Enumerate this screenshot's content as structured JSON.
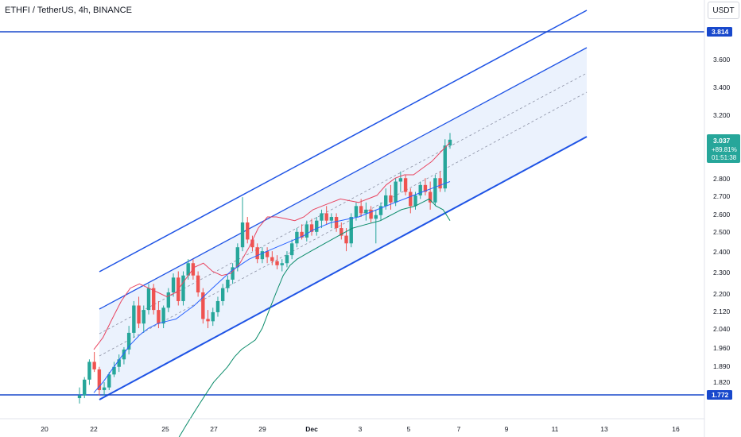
{
  "header": {
    "symbol_title": "ETHFI / TetherUS, 4h, BINANCE",
    "currency": "USDT"
  },
  "colors": {
    "up": "#26a69a",
    "down": "#ef5350",
    "channel": "#1e53e5",
    "channel_fill": "#dbe8fb",
    "horizontal_line": "#1848cc",
    "bb_upper": "#e94560",
    "bb_basis": "#2962ff",
    "bb_lower": "#0b8c6b",
    "price_badge": "#26a69a"
  },
  "chart_data": {
    "type": "candlestick",
    "title": "ETHFI / TetherUS, 4h, BINANCE",
    "quote_currency": "USDT",
    "y_axis": {
      "ticks": [
        "3.600",
        "3.400",
        "3.200",
        "2.800",
        "2.700",
        "2.600",
        "2.500",
        "2.400",
        "2.300",
        "2.200",
        "2.120",
        "2.040",
        "1.960",
        "1.890",
        "1.820"
      ],
      "scale": "log",
      "ylim": [
        1.7,
        4.0
      ]
    },
    "x_axis": {
      "ticks": [
        "20",
        "22",
        "25",
        "27",
        "29",
        "Dec",
        "3",
        "5",
        "7",
        "9",
        "11",
        "13",
        "16"
      ]
    },
    "horizontal_levels": [
      {
        "label": "3.814",
        "value": 3.814
      },
      {
        "label": "1.772",
        "value": 1.772
      }
    ],
    "last_price": {
      "price": "3.037",
      "change": "+89.81%",
      "countdown": "01:51:38"
    },
    "candles_ohlc": [
      [
        1.76,
        1.8,
        1.74,
        1.77
      ],
      [
        1.77,
        1.84,
        1.76,
        1.83
      ],
      [
        1.83,
        1.91,
        1.81,
        1.9
      ],
      [
        1.9,
        1.94,
        1.86,
        1.87
      ],
      [
        1.87,
        1.88,
        1.77,
        1.79
      ],
      [
        1.79,
        1.82,
        1.77,
        1.8
      ],
      [
        1.8,
        1.86,
        1.79,
        1.85
      ],
      [
        1.85,
        1.9,
        1.84,
        1.88
      ],
      [
        1.88,
        1.93,
        1.86,
        1.91
      ],
      [
        1.91,
        1.96,
        1.89,
        1.95
      ],
      [
        1.95,
        2.05,
        1.93,
        2.02
      ],
      [
        2.02,
        2.16,
        2.0,
        2.14
      ],
      [
        2.14,
        2.18,
        2.04,
        2.06
      ],
      [
        2.06,
        2.14,
        2.02,
        2.12
      ],
      [
        2.12,
        2.24,
        2.1,
        2.22
      ],
      [
        2.22,
        2.24,
        2.1,
        2.12
      ],
      [
        2.12,
        2.16,
        2.04,
        2.06
      ],
      [
        2.06,
        2.14,
        2.04,
        2.13
      ],
      [
        2.13,
        2.22,
        2.11,
        2.2
      ],
      [
        2.2,
        2.29,
        2.18,
        2.27
      ],
      [
        2.27,
        2.3,
        2.14,
        2.16
      ],
      [
        2.16,
        2.3,
        2.14,
        2.28
      ],
      [
        2.28,
        2.36,
        2.26,
        2.34
      ],
      [
        2.34,
        2.36,
        2.26,
        2.28
      ],
      [
        2.28,
        2.3,
        2.18,
        2.2
      ],
      [
        2.2,
        2.22,
        2.06,
        2.08
      ],
      [
        2.08,
        2.12,
        2.04,
        2.07
      ],
      [
        2.07,
        2.13,
        2.05,
        2.11
      ],
      [
        2.11,
        2.18,
        2.09,
        2.16
      ],
      [
        2.16,
        2.24,
        2.14,
        2.22
      ],
      [
        2.22,
        2.28,
        2.2,
        2.26
      ],
      [
        2.26,
        2.34,
        2.24,
        2.32
      ],
      [
        2.32,
        2.44,
        2.3,
        2.42
      ],
      [
        2.42,
        2.69,
        2.4,
        2.55
      ],
      [
        2.55,
        2.58,
        2.44,
        2.46
      ],
      [
        2.46,
        2.48,
        2.4,
        2.42
      ],
      [
        2.42,
        2.44,
        2.34,
        2.36
      ],
      [
        2.36,
        2.42,
        2.34,
        2.4
      ],
      [
        2.4,
        2.42,
        2.34,
        2.37
      ],
      [
        2.37,
        2.4,
        2.33,
        2.35
      ],
      [
        2.35,
        2.38,
        2.31,
        2.33
      ],
      [
        2.33,
        2.36,
        2.3,
        2.34
      ],
      [
        2.34,
        2.4,
        2.32,
        2.38
      ],
      [
        2.38,
        2.46,
        2.36,
        2.44
      ],
      [
        2.44,
        2.52,
        2.42,
        2.5
      ],
      [
        2.5,
        2.54,
        2.46,
        2.47
      ],
      [
        2.47,
        2.56,
        2.45,
        2.54
      ],
      [
        2.54,
        2.57,
        2.48,
        2.5
      ],
      [
        2.5,
        2.58,
        2.48,
        2.56
      ],
      [
        2.56,
        2.62,
        2.52,
        2.6
      ],
      [
        2.6,
        2.64,
        2.54,
        2.56
      ],
      [
        2.56,
        2.6,
        2.52,
        2.58
      ],
      [
        2.58,
        2.6,
        2.5,
        2.52
      ],
      [
        2.52,
        2.55,
        2.46,
        2.48
      ],
      [
        2.48,
        2.52,
        2.4,
        2.44
      ],
      [
        2.44,
        2.6,
        2.42,
        2.58
      ],
      [
        2.58,
        2.66,
        2.56,
        2.64
      ],
      [
        2.64,
        2.68,
        2.58,
        2.6
      ],
      [
        2.6,
        2.66,
        2.56,
        2.62
      ],
      [
        2.62,
        2.64,
        2.55,
        2.57
      ],
      [
        2.57,
        2.62,
        2.44,
        2.59
      ],
      [
        2.59,
        2.66,
        2.56,
        2.64
      ],
      [
        2.64,
        2.74,
        2.62,
        2.7
      ],
      [
        2.7,
        2.76,
        2.62,
        2.66
      ],
      [
        2.66,
        2.8,
        2.64,
        2.78
      ],
      [
        2.78,
        2.84,
        2.72,
        2.8
      ],
      [
        2.8,
        2.82,
        2.7,
        2.72
      ],
      [
        2.72,
        2.74,
        2.6,
        2.64
      ],
      [
        2.64,
        2.72,
        2.62,
        2.7
      ],
      [
        2.7,
        2.78,
        2.68,
        2.76
      ],
      [
        2.76,
        2.8,
        2.7,
        2.72
      ],
      [
        2.72,
        2.78,
        2.62,
        2.66
      ],
      [
        2.66,
        2.82,
        2.64,
        2.8
      ],
      [
        2.8,
        2.84,
        2.72,
        2.74
      ],
      [
        2.74,
        3.04,
        2.72,
        3.0
      ],
      [
        3.0,
        3.08,
        2.98,
        3.037
      ]
    ],
    "bollinger_upper": [
      1.95,
      2.0,
      2.08,
      2.16,
      2.22,
      2.24,
      2.22,
      2.2,
      2.18,
      2.2,
      2.26,
      2.32,
      2.34,
      2.3,
      2.28,
      2.29,
      2.34,
      2.42,
      2.52,
      2.58,
      2.58,
      2.57,
      2.56,
      2.58,
      2.62,
      2.64,
      2.66,
      2.68,
      2.67,
      2.66,
      2.68,
      2.7,
      2.76,
      2.8,
      2.82,
      2.82,
      2.86,
      2.9,
      2.96,
      3.02
    ],
    "bollinger_basis": [
      1.78,
      1.82,
      1.87,
      1.92,
      1.97,
      2.01,
      2.04,
      2.06,
      2.07,
      2.08,
      2.11,
      2.14,
      2.18,
      2.22,
      2.26,
      2.3,
      2.33,
      2.36,
      2.38,
      2.4,
      2.42,
      2.44,
      2.46,
      2.48,
      2.51,
      2.53,
      2.55,
      2.56,
      2.57,
      2.58,
      2.6,
      2.62,
      2.64,
      2.66,
      2.68,
      2.7,
      2.72,
      2.74,
      2.76,
      2.78
    ],
    "bollinger_lower": [
      1.62,
      1.66,
      1.7,
      1.74,
      1.78,
      1.82,
      1.85,
      1.88,
      1.92,
      1.95,
      1.97,
      1.99,
      2.04,
      2.12,
      2.2,
      2.28,
      2.33,
      2.36,
      2.38,
      2.4,
      2.42,
      2.44,
      2.46,
      2.48,
      2.5,
      2.52,
      2.53,
      2.54,
      2.55,
      2.56,
      2.58,
      2.6,
      2.62,
      2.63,
      2.64,
      2.66,
      2.68,
      2.64,
      2.62,
      2.56
    ]
  }
}
